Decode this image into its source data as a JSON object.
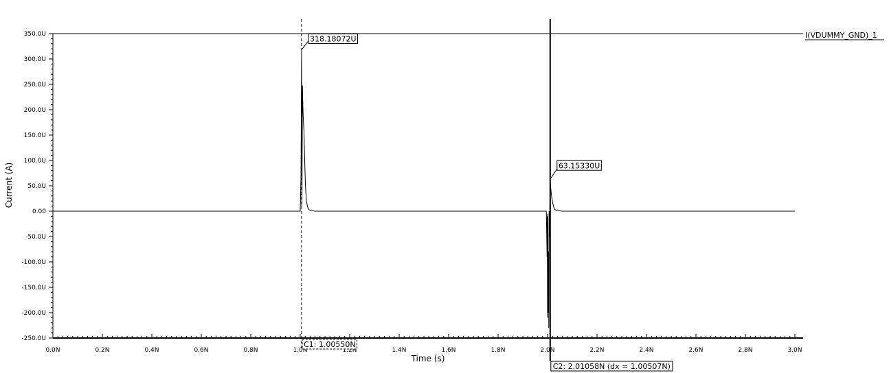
{
  "chart_data": {
    "type": "line",
    "title": "",
    "xlabel": "Time (s)",
    "ylabel": "Current (A)",
    "xlim": [
      0,
      3.0
    ],
    "ylim": [
      -250,
      350
    ],
    "x_ticks": [
      "0.0N",
      "0.2N",
      "0.4N",
      "0.6N",
      "0.8N",
      "1.0N",
      "1.2N",
      "1.4N",
      "1.6N",
      "1.8N",
      "2.0N",
      "2.2N",
      "2.4N",
      "2.6N",
      "2.8N",
      "3.0N"
    ],
    "y_ticks": [
      "350.0U",
      "300.0U",
      "250.0U",
      "200.0U",
      "150.0U",
      "100.0U",
      "50.0U",
      "0.00",
      "-50.0U",
      "-100.0U",
      "-150.0U",
      "-200.0U",
      "-250.0U"
    ],
    "x_tick_values": [
      0,
      0.2,
      0.4,
      0.6,
      0.8,
      1.0,
      1.2,
      1.4,
      1.6,
      1.8,
      2.0,
      2.2,
      2.4,
      2.6,
      2.8,
      3.0
    ],
    "y_tick_values": [
      350,
      300,
      250,
      200,
      150,
      100,
      50,
      0,
      -50,
      -100,
      -150,
      -200,
      -250
    ],
    "grid": false,
    "legend": "top-right",
    "series": [
      {
        "name": "I(VDUMMY_GND)_1",
        "color": "#000000",
        "x": [
          0.0,
          1.0,
          1.003,
          1.0055,
          1.007,
          1.009,
          1.011,
          1.013,
          1.015,
          1.018,
          1.021,
          1.025,
          1.03,
          1.035,
          1.045,
          1.06,
          1.1,
          1.5,
          1.995,
          1.998,
          1.999,
          2.0,
          2.001,
          2.002,
          2.003,
          2.004,
          2.005,
          2.006,
          2.008,
          2.0106,
          2.013,
          2.016,
          2.02,
          2.025,
          2.03,
          2.04,
          2.06,
          2.1,
          3.0
        ],
        "y": [
          0,
          0,
          70,
          318,
          10,
          248,
          200,
          175,
          160,
          100,
          50,
          20,
          8,
          3,
          1,
          0,
          0,
          0,
          0,
          -90,
          -10,
          -210,
          -5,
          -200,
          -150,
          -80,
          -230,
          0,
          -50,
          63,
          45,
          30,
          18,
          8,
          3,
          1,
          0,
          0,
          0
        ]
      }
    ],
    "annotations": {
      "peak1": {
        "label": "318.18072U",
        "x": 1.0055,
        "y": 318.18072
      },
      "peak2": {
        "label": "63.15330U",
        "x": 2.0106,
        "y": 63.1533
      },
      "cursor1": {
        "label": "C1: 1.00550N",
        "x": 1.0055,
        "style": "dashed"
      },
      "cursor2": {
        "label": "C2: 2.01058N (dx = 1.00507N)",
        "x": 2.01058,
        "style": "solid"
      }
    }
  }
}
